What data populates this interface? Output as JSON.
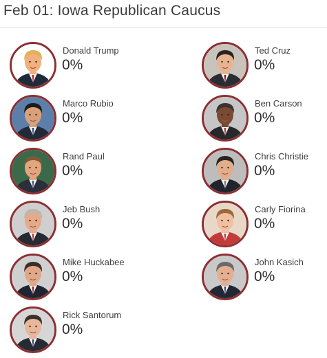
{
  "header": {
    "title": "Feb 01: Iowa Republican Caucus"
  },
  "candidates": [
    {
      "name": "Donald Trump",
      "pct": "0%",
      "photo": "donald-trump-photo",
      "hair": "#e0b25a",
      "skin": "#f2b07e",
      "bg": "#ffffff",
      "suit": "#1f2a3a",
      "tie": "#c8202c"
    },
    {
      "name": "Ted Cruz",
      "pct": "0%",
      "photo": "ted-cruz-photo",
      "hair": "#2a2320",
      "skin": "#e8b490",
      "bg": "#c8c4bc",
      "suit": "#2a2d33",
      "tie": "#8a1f2a"
    },
    {
      "name": "Marco Rubio",
      "pct": "0%",
      "photo": "marco-rubio-photo",
      "hair": "#1c1a1a",
      "skin": "#d9a07a",
      "bg": "#5b7fa8",
      "suit": "#222a38",
      "tie": "#2f4f7a"
    },
    {
      "name": "Ben Carson",
      "pct": "0%",
      "photo": "ben-carson-photo",
      "hair": "#3a3330",
      "skin": "#7a4a32",
      "bg": "#c6c6c6",
      "suit": "#26282c",
      "tie": "#a33a3a"
    },
    {
      "name": "Rand Paul",
      "pct": "0%",
      "photo": "rand-paul-photo",
      "hair": "#7a5a3a",
      "skin": "#e3a67c",
      "bg": "#3a6a4a",
      "suit": "#2a2f3a",
      "tie": "#3b5a8a"
    },
    {
      "name": "Chris Christie",
      "pct": "0%",
      "photo": "chris-christie-photo",
      "hair": "#2a2420",
      "skin": "#e2ad8a",
      "bg": "#bdbdbd",
      "suit": "#20242c",
      "tie": "#7a7a80"
    },
    {
      "name": "Jeb Bush",
      "pct": "0%",
      "photo": "jeb-bush-photo",
      "hair": "#bdb6ad",
      "skin": "#e6a98a",
      "bg": "#cfcfcf",
      "suit": "#262a33",
      "tie": "#b23a3a"
    },
    {
      "name": "Carly Fiorina",
      "pct": "0%",
      "photo": "carly-fiorina-photo",
      "hair": "#9a6a3a",
      "skin": "#f0c0a0",
      "bg": "#e8d8c8",
      "suit": "#c23a3a",
      "tie": "#c23a3a"
    },
    {
      "name": "Mike Huckabee",
      "pct": "0%",
      "photo": "mike-huckabee-photo",
      "hair": "#3a2e28",
      "skin": "#e0a888",
      "bg": "#d0d0d0",
      "suit": "#1f2530",
      "tie": "#8a2a2a"
    },
    {
      "name": "John Kasich",
      "pct": "0%",
      "photo": "john-kasich-photo",
      "hair": "#6a6a68",
      "skin": "#e4ae92",
      "bg": "#c9c9c9",
      "suit": "#222833",
      "tie": "#3a4a7a"
    },
    {
      "name": "Rick Santorum",
      "pct": "0%",
      "photo": "rick-santorum-photo",
      "hair": "#3a302a",
      "skin": "#e8b69a",
      "bg": "#d6d6d6",
      "suit": "#252a33",
      "tie": "#2f3f6a"
    }
  ]
}
